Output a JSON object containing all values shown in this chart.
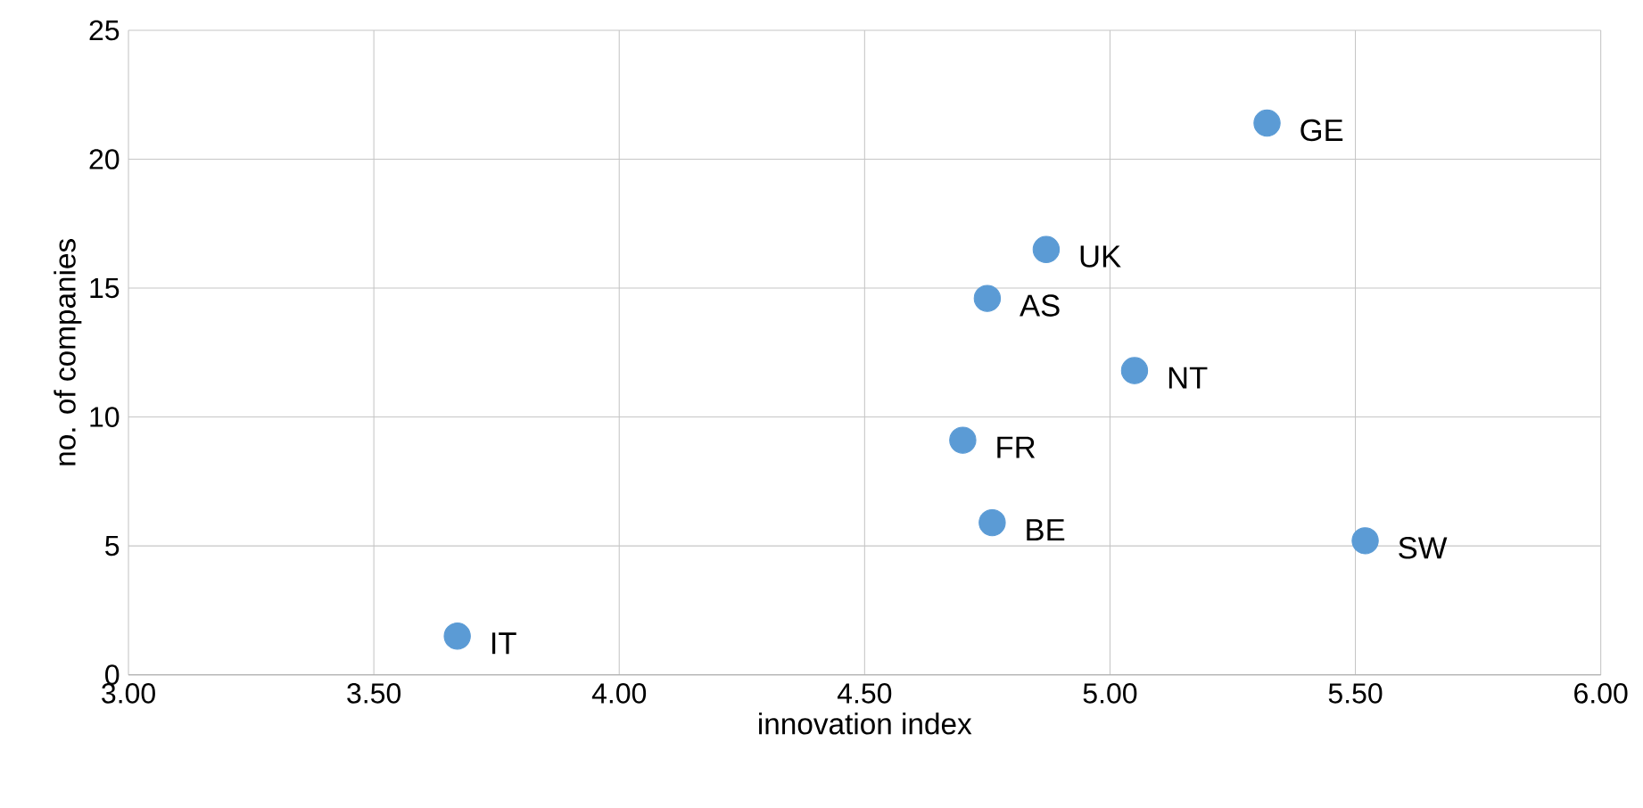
{
  "chart_data": {
    "type": "scatter",
    "xlabel": "innovation index",
    "ylabel": "no. of companies",
    "x": [
      5.32,
      4.87,
      4.75,
      5.05,
      4.7,
      4.76,
      5.52,
      3.67
    ],
    "values": [
      21.4,
      16.5,
      14.6,
      11.8,
      9.1,
      5.9,
      5.2,
      1.5
    ],
    "color": "#5b9bd5",
    "marker": "circle",
    "grid": true,
    "xlim": [
      3,
      6
    ],
    "ylim": [
      0,
      25
    ],
    "xticks": [
      {
        "value": 3,
        "label": "3.00"
      },
      {
        "value": 3.5,
        "label": "3.50"
      },
      {
        "value": 4,
        "label": "4.00"
      },
      {
        "value": 4.5,
        "label": "4.50"
      },
      {
        "value": 5,
        "label": "5.00"
      },
      {
        "value": 5.5,
        "label": "5.50"
      },
      {
        "value": 6,
        "label": "6.00"
      }
    ],
    "yticks": [
      0,
      5,
      10,
      15,
      20,
      25
    ],
    "annotations": [
      {
        "text": "GE",
        "x": 5.32,
        "y": 21.4
      },
      {
        "text": "UK",
        "x": 4.87,
        "y": 16.5
      },
      {
        "text": "AS",
        "x": 4.75,
        "y": 14.6
      },
      {
        "text": "NT",
        "x": 5.05,
        "y": 11.8
      },
      {
        "text": "FR",
        "x": 4.7,
        "y": 9.1
      },
      {
        "text": "BE",
        "x": 4.76,
        "y": 5.9
      },
      {
        "text": "SW",
        "x": 5.52,
        "y": 5.2
      },
      {
        "text": "IT",
        "x": 3.67,
        "y": 1.5
      }
    ]
  }
}
